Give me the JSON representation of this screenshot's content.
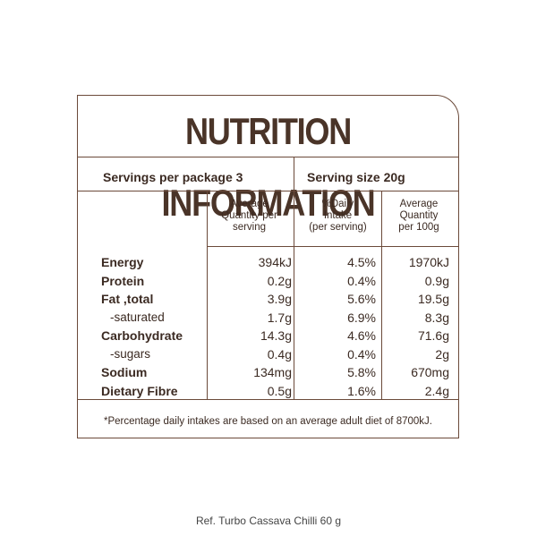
{
  "title": "NUTRITION INFORMATION",
  "servings_per_package": "Servings per package 3",
  "serving_size": "Serving size  20g",
  "columns": {
    "avg_serving": [
      "Average",
      "Quantity per",
      "serving"
    ],
    "daily_intake": [
      "%Daily",
      "Intake",
      "(per serving)"
    ],
    "per_100g": [
      "Average",
      "Quantity",
      "per 100g"
    ]
  },
  "rows": [
    {
      "label": "Energy",
      "serving": "394kJ",
      "daily": "4.5%",
      "per100": "1970kJ"
    },
    {
      "label": "Protein",
      "serving": "0.2g",
      "daily": "0.4%",
      "per100": "0.9g"
    },
    {
      "label": "Fat ,total",
      "serving": "3.9g",
      "daily": "5.6%",
      "per100": "19.5g"
    },
    {
      "label": "-saturated",
      "serving": "1.7g",
      "daily": "6.9%",
      "per100": "8.3g"
    },
    {
      "label": "Carbohydrate",
      "serving": "14.3g",
      "daily": "4.6%",
      "per100": "71.6g"
    },
    {
      "label": "-sugars",
      "serving": "0.4g",
      "daily": "0.4%",
      "per100": "2g"
    },
    {
      "label": "Sodium",
      "serving": "134mg",
      "daily": "5.8%",
      "per100": "670mg"
    },
    {
      "label": "Dietary Fibre",
      "serving": "0.5g",
      "daily": "1.6%",
      "per100": "2.4g"
    }
  ],
  "footnote": "*Percentage daily intakes are based on an average adult diet of 8700kJ.",
  "reference": "Ref. Turbo Cassava Chilli 60 g"
}
